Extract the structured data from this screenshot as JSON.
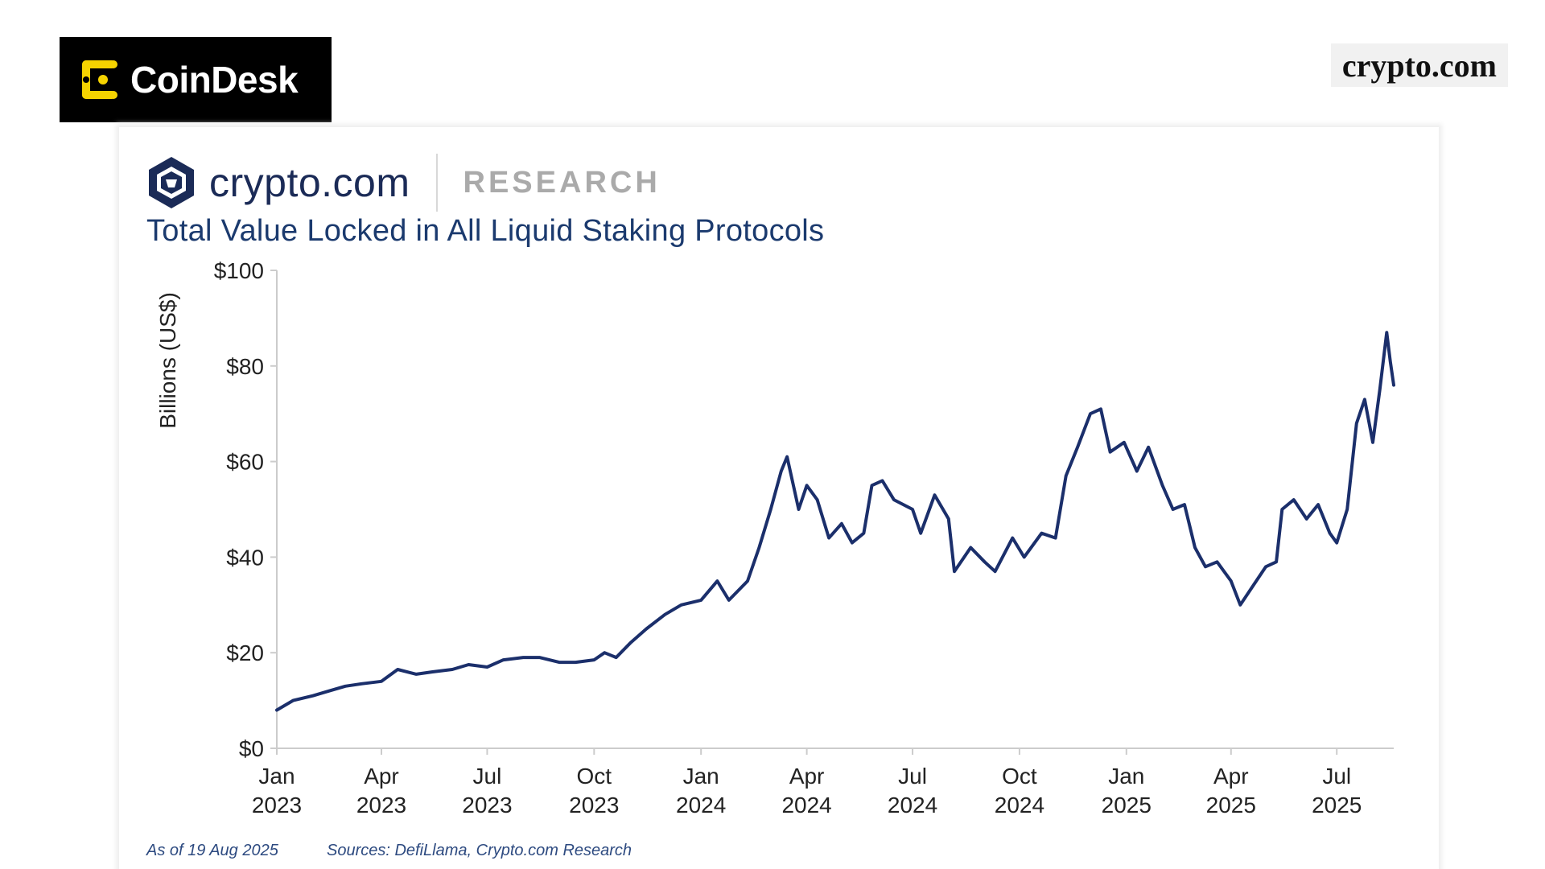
{
  "header": {
    "coindesk_name": "CoinDesk",
    "corner_brand": "crypto.com"
  },
  "card": {
    "brand_name": "crypto.com",
    "brand_section": "RESEARCH",
    "as_of": "As of 19 Aug 2025",
    "sources": "Sources: DefiLlama, Crypto.com Research"
  },
  "colors": {
    "line": "#1b2f6b",
    "title": "#1b3a6e",
    "axis": "#cccccc",
    "coindesk_yellow": "#f5d300"
  },
  "chart_data": {
    "type": "line",
    "title": "Total Value Locked in All Liquid Staking Protocols",
    "xlabel": "",
    "ylabel": "Billions (US$)",
    "ylim": [
      0,
      100
    ],
    "xlim": [
      "2023-01-01",
      "2025-08-19"
    ],
    "grid": false,
    "legend": "none",
    "y_ticks": [
      "$0",
      "$20",
      "$40",
      "$60",
      "$80",
      "$100"
    ],
    "x_ticks": [
      {
        "month": "Jan",
        "year": "2023",
        "date": "2023-01-01"
      },
      {
        "month": "Apr",
        "year": "2023",
        "date": "2023-04-01"
      },
      {
        "month": "Jul",
        "year": "2023",
        "date": "2023-07-01"
      },
      {
        "month": "Oct",
        "year": "2023",
        "date": "2023-10-01"
      },
      {
        "month": "Jan",
        "year": "2024",
        "date": "2024-01-01"
      },
      {
        "month": "Apr",
        "year": "2024",
        "date": "2024-04-01"
      },
      {
        "month": "Jul",
        "year": "2024",
        "date": "2024-07-01"
      },
      {
        "month": "Oct",
        "year": "2024",
        "date": "2024-10-01"
      },
      {
        "month": "Jan",
        "year": "2025",
        "date": "2025-01-01"
      },
      {
        "month": "Apr",
        "year": "2025",
        "date": "2025-04-01"
      },
      {
        "month": "Jul",
        "year": "2025",
        "date": "2025-07-01"
      }
    ],
    "series": [
      {
        "points": [
          [
            "2023-01-01",
            8
          ],
          [
            "2023-01-15",
            10
          ],
          [
            "2023-02-01",
            11
          ],
          [
            "2023-02-15",
            12
          ],
          [
            "2023-03-01",
            13
          ],
          [
            "2023-03-15",
            13.5
          ],
          [
            "2023-04-01",
            14
          ],
          [
            "2023-04-15",
            16.5
          ],
          [
            "2023-05-01",
            15.5
          ],
          [
            "2023-05-15",
            16
          ],
          [
            "2023-06-01",
            16.5
          ],
          [
            "2023-06-15",
            17.5
          ],
          [
            "2023-07-01",
            17
          ],
          [
            "2023-07-15",
            18.5
          ],
          [
            "2023-08-01",
            19
          ],
          [
            "2023-08-15",
            19
          ],
          [
            "2023-09-01",
            18
          ],
          [
            "2023-09-15",
            18
          ],
          [
            "2023-10-01",
            18.5
          ],
          [
            "2023-10-10",
            20
          ],
          [
            "2023-10-20",
            19
          ],
          [
            "2023-11-01",
            22
          ],
          [
            "2023-11-15",
            25
          ],
          [
            "2023-12-01",
            28
          ],
          [
            "2023-12-15",
            30
          ],
          [
            "2024-01-01",
            31
          ],
          [
            "2024-01-15",
            35
          ],
          [
            "2024-01-25",
            31
          ],
          [
            "2024-02-10",
            35
          ],
          [
            "2024-02-20",
            42
          ],
          [
            "2024-03-01",
            50
          ],
          [
            "2024-03-10",
            58
          ],
          [
            "2024-03-15",
            61
          ],
          [
            "2024-03-25",
            50
          ],
          [
            "2024-04-01",
            55
          ],
          [
            "2024-04-10",
            52
          ],
          [
            "2024-04-20",
            44
          ],
          [
            "2024-05-01",
            47
          ],
          [
            "2024-05-10",
            43
          ],
          [
            "2024-05-20",
            45
          ],
          [
            "2024-05-27",
            55
          ],
          [
            "2024-06-05",
            56
          ],
          [
            "2024-06-15",
            52
          ],
          [
            "2024-07-01",
            50
          ],
          [
            "2024-07-08",
            45
          ],
          [
            "2024-07-20",
            53
          ],
          [
            "2024-08-01",
            48
          ],
          [
            "2024-08-06",
            37
          ],
          [
            "2024-08-20",
            42
          ],
          [
            "2024-09-01",
            39
          ],
          [
            "2024-09-10",
            37
          ],
          [
            "2024-09-25",
            44
          ],
          [
            "2024-10-05",
            40
          ],
          [
            "2024-10-20",
            45
          ],
          [
            "2024-11-01",
            44
          ],
          [
            "2024-11-10",
            57
          ],
          [
            "2024-11-20",
            63
          ],
          [
            "2024-12-01",
            70
          ],
          [
            "2024-12-10",
            71
          ],
          [
            "2024-12-18",
            62
          ],
          [
            "2024-12-30",
            64
          ],
          [
            "2025-01-10",
            58
          ],
          [
            "2025-01-20",
            63
          ],
          [
            "2025-02-01",
            55
          ],
          [
            "2025-02-10",
            50
          ],
          [
            "2025-02-20",
            51
          ],
          [
            "2025-03-01",
            42
          ],
          [
            "2025-03-10",
            38
          ],
          [
            "2025-03-20",
            39
          ],
          [
            "2025-04-01",
            35
          ],
          [
            "2025-04-09",
            30
          ],
          [
            "2025-04-20",
            34
          ],
          [
            "2025-05-01",
            38
          ],
          [
            "2025-05-10",
            39
          ],
          [
            "2025-05-15",
            50
          ],
          [
            "2025-05-25",
            52
          ],
          [
            "2025-06-05",
            48
          ],
          [
            "2025-06-15",
            51
          ],
          [
            "2025-06-25",
            45
          ],
          [
            "2025-07-01",
            43
          ],
          [
            "2025-07-10",
            50
          ],
          [
            "2025-07-18",
            68
          ],
          [
            "2025-07-25",
            73
          ],
          [
            "2025-08-01",
            64
          ],
          [
            "2025-08-07",
            75
          ],
          [
            "2025-08-13",
            87
          ],
          [
            "2025-08-16",
            81
          ],
          [
            "2025-08-19",
            76
          ]
        ]
      }
    ]
  }
}
